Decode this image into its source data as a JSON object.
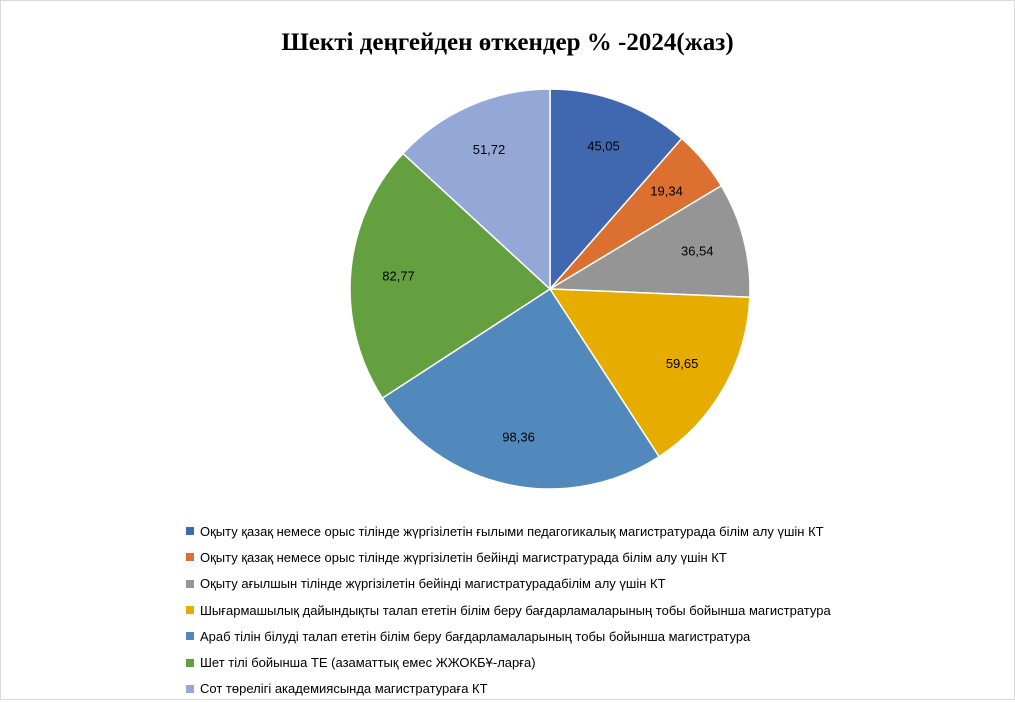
{
  "chart_data": {
    "type": "pie",
    "title": "Шекті деңгейден өткендер % -2024(жаз)",
    "categories": [
      "Оқыту қазақ немесе орыс тілінде жүргізілетін ғылыми педагогикалық магистратурада білім алу үшін КТ",
      "Оқыту қазақ немесе орыс тілінде жүргізілетін бейінді магистратурада білім алу үшін КТ",
      "Оқыту ағылшын тілінде жүргізілетін бейінді магистратурадабілім алу үшін КТ",
      "Шығармашылық дайындықты талап ететін білім беру бағдарламаларының тобы бойынша магистратура",
      "Араб тілін білуді талап ететін білім беру бағдарламаларының тобы бойынша магистратура",
      "Шет тілі бойынша ТЕ (азаматтық емес ЖЖОКБҰ-ларға)",
      "Сот төрелігі академиясында   магистратураға КТ"
    ],
    "values": [
      45.05,
      19.34,
      36.54,
      59.65,
      98.36,
      82.77,
      51.72
    ],
    "value_labels": [
      "45,05",
      "19,34",
      "36,54",
      "59,65",
      "98,36",
      "82,77",
      "51,72"
    ],
    "colors": [
      "#4068b0",
      "#dc7030",
      "#959595",
      "#e6ac00",
      "#5289bd",
      "#64a040",
      "#94a8d8"
    ],
    "legend_position": "bottom"
  }
}
